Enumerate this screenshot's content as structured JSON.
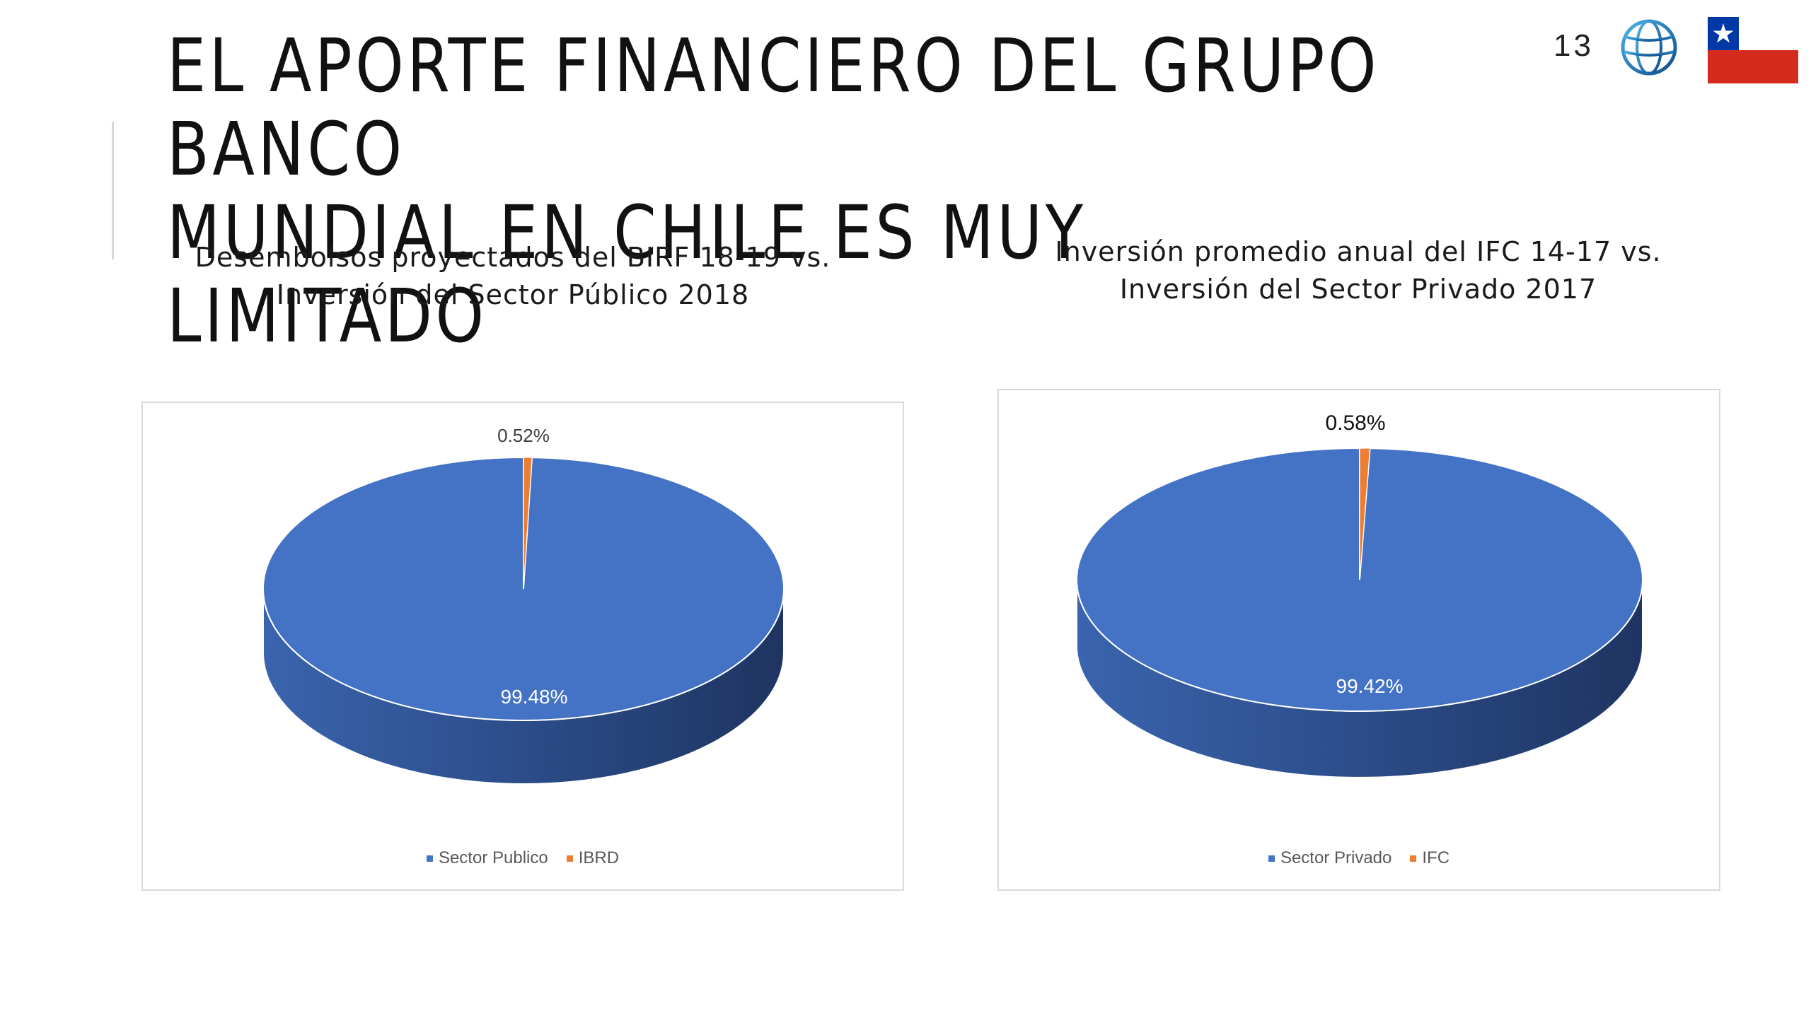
{
  "slide": {
    "title_line1": "EL APORTE FINANCIERO DEL GRUPO BANCO",
    "title_line2": "MUNDIAL EN CHILE ES MUY LIMITADO",
    "page_number": "13"
  },
  "colors": {
    "blue": "#4472c4",
    "blue_dark": "#1f3461",
    "orange": "#ed7d31"
  },
  "icons": {
    "logo": "world-bank-globe-icon",
    "flag": "chile-flag-icon"
  },
  "chart_data": [
    {
      "type": "pie",
      "style": "3d",
      "title_line1": "Desembolsos proyectados del BIRF 18-19 vs.",
      "title_line2": "Inversión del Sector Público 2018",
      "categories": [
        "Sector Publico",
        "IBRD"
      ],
      "values": [
        99.48,
        0.52
      ],
      "data_labels": [
        "99.48%",
        "0.52%"
      ],
      "legend": [
        "Sector Publico",
        "IBRD"
      ],
      "legend_position": "bottom"
    },
    {
      "type": "pie",
      "style": "3d",
      "title_line1": "Inversión promedio anual del IFC 14-17 vs.",
      "title_line2": "Inversión del Sector Privado 2017",
      "categories": [
        "Sector Privado",
        "IFC"
      ],
      "values": [
        99.42,
        0.58
      ],
      "data_labels": [
        "99.42%",
        "0.58%"
      ],
      "legend": [
        "Sector Privado",
        "IFC"
      ],
      "legend_position": "bottom"
    }
  ]
}
